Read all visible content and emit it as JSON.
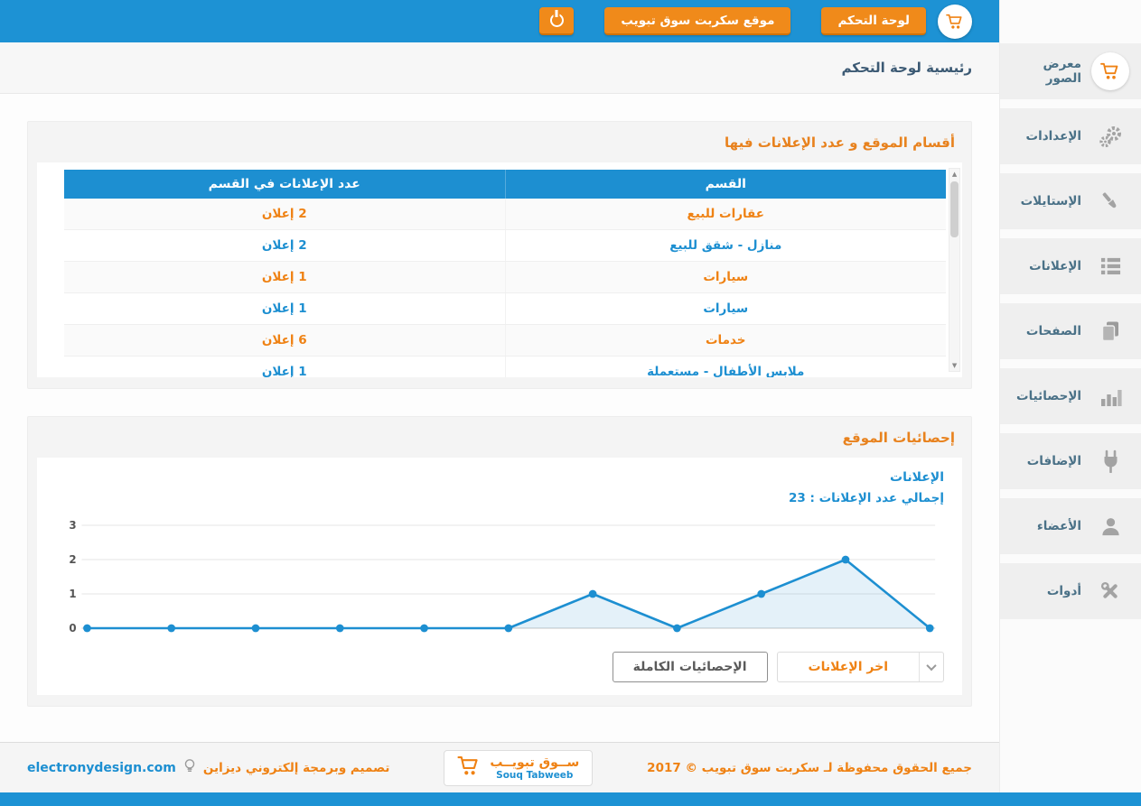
{
  "colors": {
    "blue": "#1d8fd1",
    "orange": "#ef8214",
    "topbar": "#1d92d4"
  },
  "topbar": {
    "control_panel_button": "لوحة التحكم",
    "site_button": "موقع سكربت سوق تبويب"
  },
  "breadcrumb": "رئيسية لوحة التحكم",
  "sidebar": {
    "items": [
      {
        "label": "معرض الصور",
        "icon": "cart-icon"
      },
      {
        "label": "الإعدادات",
        "icon": "gears-icon"
      },
      {
        "label": "الإستايلات",
        "icon": "paint-icon"
      },
      {
        "label": "الإعلانات",
        "icon": "list-icon"
      },
      {
        "label": "الصفحات",
        "icon": "pages-icon"
      },
      {
        "label": "الإحصائيات",
        "icon": "bar-chart-icon"
      },
      {
        "label": "الإضافات",
        "icon": "plug-icon"
      },
      {
        "label": "الأعضاء",
        "icon": "user-icon"
      },
      {
        "label": "أدوات",
        "icon": "tools-icon"
      }
    ]
  },
  "sections_card": {
    "title": "أقسام الموقع و عدد الإعلانات فيها",
    "table": {
      "col_section": "القسم",
      "col_count": "عدد الإعلانات في القسم",
      "rows": [
        {
          "section": "عقارات للبيع",
          "count": "2 إعلان"
        },
        {
          "section": "منازل - شقق للبيع",
          "count": "2 إعلان"
        },
        {
          "section": "سيارات",
          "count": "1 إعلان"
        },
        {
          "section": "سيارات",
          "count": "1 إعلان"
        },
        {
          "section": "خدمات",
          "count": "6 إعلان"
        },
        {
          "section": "ملابس الأطفال - مستعملة",
          "count": "1 إعلان"
        }
      ]
    }
  },
  "stats_card": {
    "title": "إحصائيات الموقع",
    "series_label": "الإعلانات",
    "total_text": "إجمالي عدد الإعلانات : 23",
    "full_stats_button": "الإحصائيات الكاملة",
    "latest_ads_button": "اخر الإعلانات"
  },
  "chart_data": {
    "type": "area",
    "title": "إحصائيات الموقع",
    "series_name": "الإعلانات",
    "x": [
      1,
      2,
      3,
      4,
      5,
      6,
      7,
      8,
      9,
      10,
      11
    ],
    "values": [
      0,
      0,
      0,
      0,
      0,
      0,
      1,
      0,
      1,
      2,
      0
    ],
    "yticks": [
      0,
      1,
      2,
      3
    ],
    "ylim": [
      0,
      3
    ],
    "grid": true,
    "legend": "none",
    "line_color": "#1d8fd1",
    "fill_color": "rgba(29,143,209,0.12)"
  },
  "footer": {
    "copyright": "جميع الحقوق محفوظة لـ سكربت سوق تبويب © 2017",
    "logo_title": "ســوق تبويــب",
    "logo_subtitle": "Souq Tabweeb",
    "credit_text": "تصميم وبرمجة إلكتروني ديزاين",
    "credit_site": "electronydesign.com"
  }
}
